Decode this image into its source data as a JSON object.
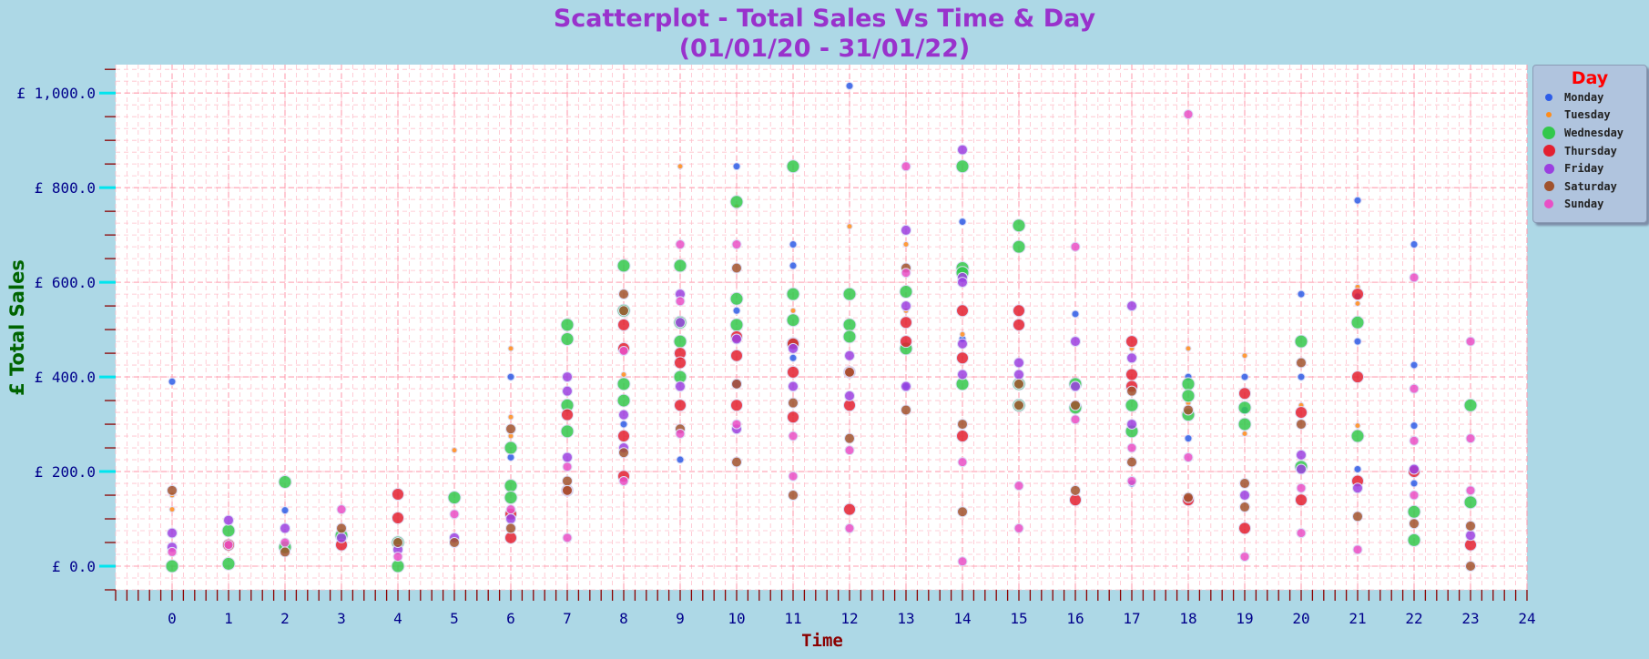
{
  "chart_data": {
    "type": "scatter",
    "title": "Scatterplot - Total Sales Vs Time & Day\n(01/01/20 - 31/01/22)",
    "xlabel": "Time",
    "ylabel": "£ Total Sales",
    "xlim": [
      -1,
      24
    ],
    "ylim": [
      -50,
      1060
    ],
    "x_ticks": [
      0,
      1,
      2,
      3,
      4,
      5,
      6,
      7,
      8,
      9,
      10,
      11,
      12,
      13,
      14,
      15,
      16,
      17,
      18,
      19,
      20,
      21,
      22,
      23,
      24
    ],
    "y_ticks": [
      0,
      200,
      400,
      600,
      800,
      1000
    ],
    "y_tick_labels": [
      "£ 0.0",
      "£ 200.0",
      "£ 400.0",
      "£ 600.0",
      "£ 800.0",
      "£ 1,000.0"
    ],
    "grid": true,
    "legend": {
      "title": "Day",
      "placement": "outside-top-right",
      "entries": [
        "Monday",
        "Tuesday",
        "Wednesday",
        "Thursday",
        "Friday",
        "Saturday",
        "Sunday"
      ]
    },
    "series": [
      {
        "name": "Monday",
        "color": "#2d5de8",
        "points": [
          [
            0,
            390
          ],
          [
            2,
            118
          ],
          [
            6,
            400
          ],
          [
            6,
            230
          ],
          [
            8,
            300
          ],
          [
            9,
            225
          ],
          [
            10,
            845
          ],
          [
            10,
            540
          ],
          [
            11,
            635
          ],
          [
            11,
            680
          ],
          [
            11,
            440
          ],
          [
            12,
            1015
          ],
          [
            13,
            380
          ],
          [
            14,
            728
          ],
          [
            14,
            480
          ],
          [
            16,
            533
          ],
          [
            17,
            175
          ],
          [
            18,
            400
          ],
          [
            18,
            270
          ],
          [
            19,
            400
          ],
          [
            19,
            330
          ],
          [
            20,
            575
          ],
          [
            20,
            400
          ],
          [
            21,
            773
          ],
          [
            21,
            570
          ],
          [
            21,
            475
          ],
          [
            21,
            205
          ],
          [
            22,
            680
          ],
          [
            22,
            425
          ],
          [
            22,
            297
          ],
          [
            22,
            175
          ]
        ]
      },
      {
        "name": "Tuesday",
        "color": "#ff8c1a",
        "points": [
          [
            0,
            150
          ],
          [
            0,
            120
          ],
          [
            5,
            245
          ],
          [
            6,
            460
          ],
          [
            6,
            315
          ],
          [
            6,
            275
          ],
          [
            8,
            405
          ],
          [
            9,
            845
          ],
          [
            10,
            760
          ],
          [
            11,
            540
          ],
          [
            12,
            718
          ],
          [
            13,
            680
          ],
          [
            13,
            540
          ],
          [
            14,
            490
          ],
          [
            17,
            460
          ],
          [
            18,
            460
          ],
          [
            18,
            345
          ],
          [
            19,
            445
          ],
          [
            19,
            280
          ],
          [
            20,
            340
          ],
          [
            21,
            590
          ],
          [
            21,
            555
          ],
          [
            21,
            297
          ]
        ]
      },
      {
        "name": "Wednesday",
        "color": "#32c84b",
        "points": [
          [
            0,
            0
          ],
          [
            1,
            75
          ],
          [
            1,
            5
          ],
          [
            2,
            178
          ],
          [
            2,
            40
          ],
          [
            3,
            65
          ],
          [
            4,
            50
          ],
          [
            4,
            0
          ],
          [
            5,
            145
          ],
          [
            6,
            250
          ],
          [
            6,
            170
          ],
          [
            6,
            145
          ],
          [
            7,
            510
          ],
          [
            7,
            480
          ],
          [
            7,
            340
          ],
          [
            7,
            285
          ],
          [
            8,
            635
          ],
          [
            8,
            540
          ],
          [
            8,
            385
          ],
          [
            8,
            350
          ],
          [
            9,
            635
          ],
          [
            9,
            515
          ],
          [
            9,
            475
          ],
          [
            9,
            400
          ],
          [
            10,
            770
          ],
          [
            10,
            565
          ],
          [
            10,
            510
          ],
          [
            11,
            845
          ],
          [
            11,
            575
          ],
          [
            11,
            520
          ],
          [
            11,
            470
          ],
          [
            12,
            575
          ],
          [
            12,
            510
          ],
          [
            12,
            485
          ],
          [
            13,
            580
          ],
          [
            13,
            460
          ],
          [
            14,
            845
          ],
          [
            14,
            630
          ],
          [
            14,
            620
          ],
          [
            14,
            385
          ],
          [
            15,
            720
          ],
          [
            15,
            675
          ],
          [
            15,
            385
          ],
          [
            15,
            340
          ],
          [
            16,
            385
          ],
          [
            16,
            335
          ],
          [
            17,
            340
          ],
          [
            17,
            285
          ],
          [
            18,
            385
          ],
          [
            18,
            360
          ],
          [
            18,
            320
          ],
          [
            19,
            335
          ],
          [
            19,
            300
          ],
          [
            20,
            475
          ],
          [
            20,
            210
          ],
          [
            21,
            515
          ],
          [
            21,
            275
          ],
          [
            22,
            115
          ],
          [
            22,
            55
          ],
          [
            23,
            340
          ],
          [
            23,
            135
          ]
        ]
      },
      {
        "name": "Thursday",
        "color": "#e32030",
        "points": [
          [
            1,
            45
          ],
          [
            3,
            45
          ],
          [
            4,
            152
          ],
          [
            4,
            102
          ],
          [
            6,
            110
          ],
          [
            6,
            60
          ],
          [
            7,
            320
          ],
          [
            7,
            160
          ],
          [
            8,
            510
          ],
          [
            8,
            460
          ],
          [
            8,
            275
          ],
          [
            8,
            190
          ],
          [
            9,
            450
          ],
          [
            9,
            430
          ],
          [
            9,
            340
          ],
          [
            10,
            485
          ],
          [
            10,
            445
          ],
          [
            10,
            340
          ],
          [
            11,
            470
          ],
          [
            11,
            410
          ],
          [
            11,
            315
          ],
          [
            12,
            410
          ],
          [
            12,
            340
          ],
          [
            12,
            120
          ],
          [
            13,
            475
          ],
          [
            13,
            515
          ],
          [
            14,
            540
          ],
          [
            14,
            440
          ],
          [
            14,
            275
          ],
          [
            15,
            540
          ],
          [
            15,
            510
          ],
          [
            16,
            140
          ],
          [
            17,
            475
          ],
          [
            17,
            405
          ],
          [
            17,
            380
          ],
          [
            18,
            140
          ],
          [
            19,
            365
          ],
          [
            19,
            80
          ],
          [
            20,
            325
          ],
          [
            20,
            140
          ],
          [
            21,
            575
          ],
          [
            21,
            400
          ],
          [
            21,
            180
          ],
          [
            22,
            200
          ],
          [
            23,
            45
          ]
        ]
      },
      {
        "name": "Friday",
        "color": "#9b3fe0",
        "points": [
          [
            0,
            70
          ],
          [
            0,
            40
          ],
          [
            1,
            97
          ],
          [
            2,
            80
          ],
          [
            3,
            60
          ],
          [
            4,
            35
          ],
          [
            5,
            60
          ],
          [
            6,
            100
          ],
          [
            7,
            400
          ],
          [
            7,
            370
          ],
          [
            7,
            230
          ],
          [
            8,
            320
          ],
          [
            8,
            250
          ],
          [
            9,
            575
          ],
          [
            9,
            515
          ],
          [
            9,
            380
          ],
          [
            10,
            480
          ],
          [
            10,
            385
          ],
          [
            10,
            290
          ],
          [
            11,
            460
          ],
          [
            11,
            380
          ],
          [
            12,
            445
          ],
          [
            12,
            360
          ],
          [
            13,
            710
          ],
          [
            13,
            550
          ],
          [
            13,
            380
          ],
          [
            14,
            880
          ],
          [
            14,
            610
          ],
          [
            14,
            600
          ],
          [
            14,
            470
          ],
          [
            14,
            405
          ],
          [
            15,
            430
          ],
          [
            15,
            405
          ],
          [
            16,
            475
          ],
          [
            16,
            380
          ],
          [
            17,
            550
          ],
          [
            17,
            440
          ],
          [
            17,
            300
          ],
          [
            19,
            150
          ],
          [
            20,
            235
          ],
          [
            20,
            205
          ],
          [
            21,
            165
          ],
          [
            22,
            205
          ],
          [
            23,
            65
          ]
        ]
      },
      {
        "name": "Saturday",
        "color": "#a0522d",
        "points": [
          [
            0,
            160
          ],
          [
            2,
            30
          ],
          [
            3,
            80
          ],
          [
            4,
            50
          ],
          [
            5,
            50
          ],
          [
            6,
            290
          ],
          [
            6,
            80
          ],
          [
            7,
            180
          ],
          [
            7,
            160
          ],
          [
            8,
            575
          ],
          [
            8,
            540
          ],
          [
            8,
            240
          ],
          [
            9,
            290
          ],
          [
            10,
            630
          ],
          [
            10,
            385
          ],
          [
            10,
            220
          ],
          [
            11,
            345
          ],
          [
            11,
            150
          ],
          [
            12,
            410
          ],
          [
            12,
            270
          ],
          [
            13,
            630
          ],
          [
            13,
            330
          ],
          [
            14,
            300
          ],
          [
            14,
            115
          ],
          [
            15,
            385
          ],
          [
            15,
            340
          ],
          [
            16,
            340
          ],
          [
            16,
            160
          ],
          [
            17,
            370
          ],
          [
            17,
            220
          ],
          [
            18,
            330
          ],
          [
            18,
            145
          ],
          [
            19,
            175
          ],
          [
            19,
            125
          ],
          [
            20,
            430
          ],
          [
            20,
            300
          ],
          [
            21,
            105
          ],
          [
            22,
            90
          ],
          [
            23,
            85
          ],
          [
            23,
            0
          ]
        ]
      },
      {
        "name": "Sunday",
        "color": "#e94fc6",
        "points": [
          [
            0,
            30
          ],
          [
            1,
            45
          ],
          [
            2,
            50
          ],
          [
            3,
            120
          ],
          [
            4,
            20
          ],
          [
            5,
            110
          ],
          [
            6,
            120
          ],
          [
            7,
            210
          ],
          [
            7,
            60
          ],
          [
            8,
            455
          ],
          [
            8,
            180
          ],
          [
            9,
            680
          ],
          [
            9,
            560
          ],
          [
            9,
            280
          ],
          [
            10,
            680
          ],
          [
            10,
            300
          ],
          [
            11,
            275
          ],
          [
            11,
            190
          ],
          [
            12,
            245
          ],
          [
            12,
            80
          ],
          [
            13,
            845
          ],
          [
            13,
            620
          ],
          [
            14,
            220
          ],
          [
            14,
            10
          ],
          [
            15,
            170
          ],
          [
            15,
            80
          ],
          [
            16,
            675
          ],
          [
            16,
            310
          ],
          [
            17,
            250
          ],
          [
            17,
            180
          ],
          [
            18,
            955
          ],
          [
            18,
            230
          ],
          [
            19,
            20
          ],
          [
            20,
            165
          ],
          [
            20,
            70
          ],
          [
            21,
            35
          ],
          [
            22,
            610
          ],
          [
            22,
            375
          ],
          [
            22,
            265
          ],
          [
            22,
            150
          ],
          [
            23,
            475
          ],
          [
            23,
            270
          ],
          [
            23,
            160
          ]
        ]
      }
    ]
  }
}
